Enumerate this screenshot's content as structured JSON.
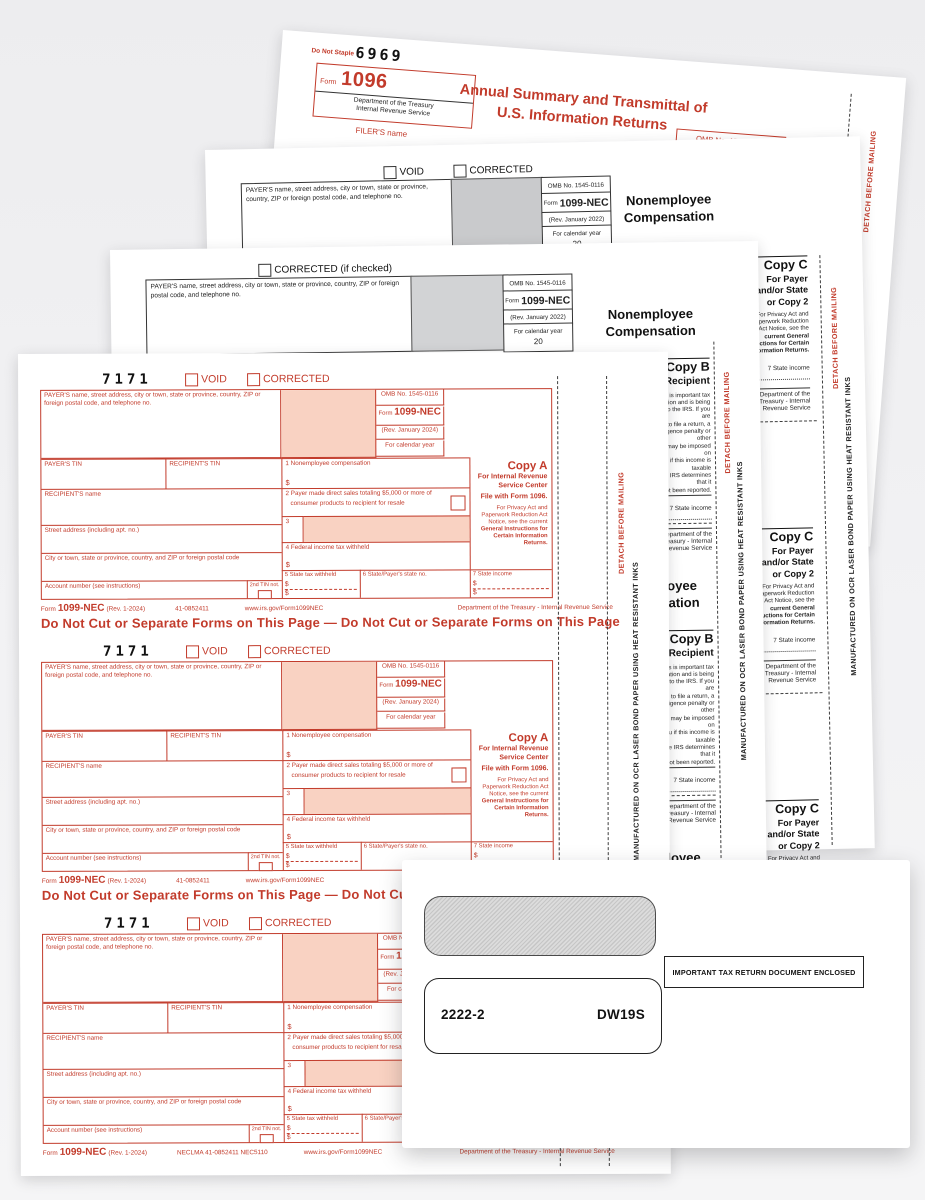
{
  "colors": {
    "form_red": "#C23B2B",
    "pink_fill": "#F9D2C2",
    "gray_box": "#C9CACC",
    "paper": "#FFFFFF"
  },
  "strip": {
    "detach": "DETACH BEFORE MAILING",
    "manufactured": "MANUFACTURED ON OCR LASER BOND PAPER USING HEAT RESISTANT INKS"
  },
  "titles": {
    "line1": "Nonemployee",
    "line2": "Compensation"
  },
  "form_1096": {
    "do_not_staple": "Do Not Staple",
    "ocr_code": "6969",
    "form_word": "Form",
    "number": "1096",
    "dept_line1": "Department of the Treasury",
    "dept_line2": "Internal Revenue Service",
    "filer_label": "FILER'S name",
    "title_line1": "Annual Summary and Transmittal of",
    "title_line2": "U.S. Information Returns",
    "omb": "OMB No. 1545-0108"
  },
  "form_2022_void": {
    "void": "VOID",
    "corrected": "CORRECTED",
    "payer_label": "PAYER'S name, street address, city or town, state or province, country, ZIP or foreign postal code, and telephone no.",
    "omb": "OMB No. 1545-0116",
    "form_word": "Form",
    "number": "1099-NEC",
    "rev": "(Rev. January 2022)",
    "calendar_year": "For calendar year",
    "year_prefix": "20"
  },
  "form_2022_corrected": {
    "corrected": "CORRECTED (if checked)",
    "payer_label": "PAYER'S name, street address, city or town, state or province, country, ZIP or foreign postal code, and telephone no.",
    "omb": "OMB No. 1545-0116",
    "form_word": "Form",
    "number": "1099-NEC",
    "rev": "(Rev. January 2022)",
    "calendar_year": "For calendar year",
    "year_prefix": "20"
  },
  "copy_c": {
    "title": "Copy C",
    "line1": "For Payer",
    "line2": "and/or State",
    "line3": "or Copy 2",
    "fine_print": [
      "For Privacy Act and",
      "Paperwork Reduction",
      "Act Notice, see the",
      "current General",
      "Instructions for Certain",
      "Information Returns."
    ],
    "state_income": "7 State income",
    "dept": "Department of the Treasury - Internal Revenue Service"
  },
  "copy_b": {
    "title": "Copy B",
    "subtitle": "For Recipient",
    "fine_print": [
      "This is important tax",
      "information and is being",
      "furnished to the IRS. If you are",
      "required to file a return, a",
      "negligence penalty or other",
      "sanction may be imposed on",
      "you if this income is taxable",
      "and the IRS determines that it",
      "has not been reported."
    ],
    "state_income": "7 State income",
    "dept": "Department of the Treasury - Internal Revenue Service"
  },
  "copy_a": {
    "ocr_code": "7171",
    "void": "VOID",
    "corrected": "CORRECTED",
    "payer_label": "PAYER'S name, street address, city or town, state or province, country, ZIP or foreign postal code, and telephone no.",
    "omb": "OMB No. 1545-0116",
    "form_word": "Form",
    "number": "1099-NEC",
    "rev": "(Rev. January 2024)",
    "calendar_year": "For calendar year",
    "payers_tin": "PAYER'S TIN",
    "recipients_tin": "RECIPIENT'S TIN",
    "box1": "1 Nonemployee compensation",
    "dollar": "$",
    "recipients_name": "RECIPIENT'S name",
    "box2_line1": "2 Payer made direct sales totaling $5,000 or more of",
    "box2_line2": "consumer products to recipient for resale",
    "box3": "3",
    "street": "Street address (including apt. no.)",
    "box4": "4 Federal income tax withheld",
    "city": "City or town, state or province, country, and ZIP or foreign postal code",
    "box5": "5 State tax withheld",
    "box6": "6 State/Payer's state no.",
    "box7": "7 State income",
    "account": "Account number (see instructions)",
    "second_tin": "2nd TIN not.",
    "copy_label": "Copy A",
    "for_line1": "For Internal Revenue",
    "for_line2": "Service Center",
    "file_with": "File with Form 1096.",
    "privacy": [
      "For Privacy Act and",
      "Paperwork Reduction Act",
      "Notice, see the current",
      "General Instructions for",
      "Certain Information",
      "Returns."
    ],
    "footer_form_word": "Form",
    "footer_number": "1099-NEC",
    "footer_rev": "(Rev. 1-2024)",
    "footer_codes": "41-0852411",
    "footer_codes_last": "NECLMA   41-0852411   NEC5110",
    "footer_url": "www.irs.gov/Form1099NEC",
    "footer_dept": "Department of the Treasury - Internal Revenue Service",
    "do_not_cut": "Do Not Cut or Separate Forms on This Page — Do Not Cut or Separate Forms on This Page"
  },
  "envelope": {
    "code_left": "2222-2",
    "code_right": "DW19S",
    "notice": "IMPORTANT TAX RETURN DOCUMENT ENCLOSED"
  }
}
